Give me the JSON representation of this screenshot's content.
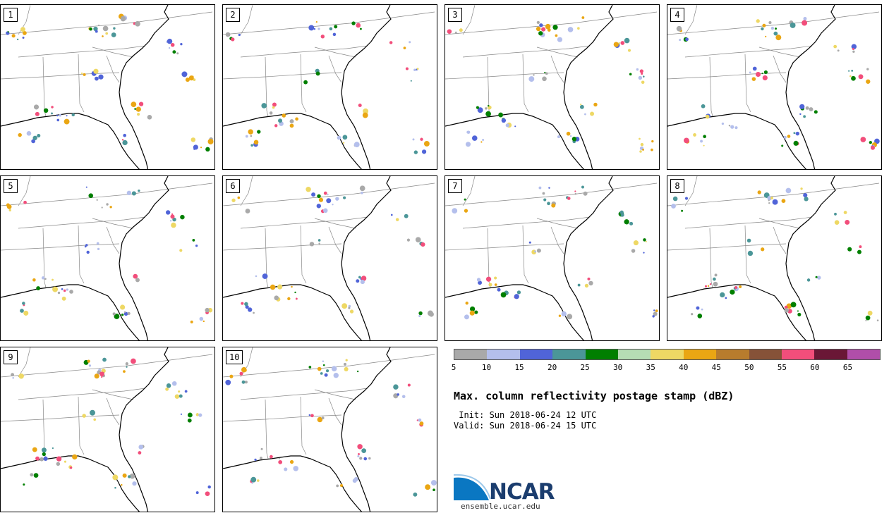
{
  "title": "Max. column reflectivity postage stamp (dBZ)",
  "init": " Init: Sun 2018-06-24 12 UTC",
  "valid": "Valid: Sun 2018-06-24 15 UTC",
  "logo": {
    "name": "NCAR",
    "url": "ensemble.ucar.edu"
  },
  "panels": [
    {
      "label": "1"
    },
    {
      "label": "2"
    },
    {
      "label": "3"
    },
    {
      "label": "4"
    },
    {
      "label": "5"
    },
    {
      "label": "6"
    },
    {
      "label": "7"
    },
    {
      "label": "8"
    },
    {
      "label": "9"
    },
    {
      "label": "10"
    }
  ],
  "colorbar": {
    "ticks": [
      "5",
      "10",
      "15",
      "20",
      "25",
      "30",
      "35",
      "40",
      "45",
      "50",
      "55",
      "60",
      "65"
    ],
    "colors": [
      "#a9a9a9",
      "#b4bfec",
      "#5064d8",
      "#4b9698",
      "#007f00",
      "#b5dcb4",
      "#eed864",
      "#eaa613",
      "#b87c2d",
      "#865238",
      "#f24e7b",
      "#6a1736",
      "#b04ea9"
    ]
  }
}
